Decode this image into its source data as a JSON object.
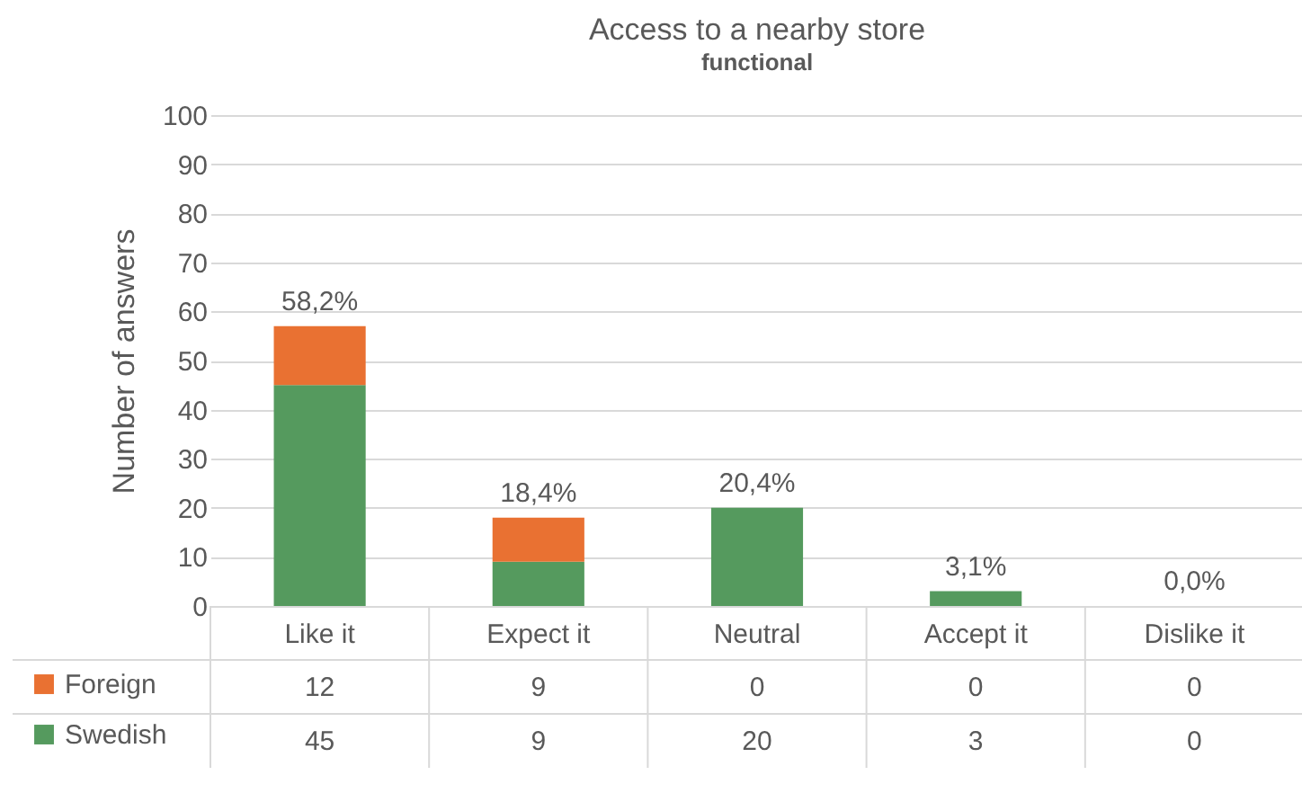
{
  "chart_data": {
    "type": "bar",
    "title": "Access to a nearby store",
    "subtitle": "functional",
    "ylabel": "Number of answers",
    "categories": [
      "Like it",
      "Expect it",
      "Neutral",
      "Accept it",
      "Dislike it"
    ],
    "series": [
      {
        "name": "Swedish",
        "color": "#559a5e",
        "values": [
          45,
          9,
          20,
          3,
          0
        ]
      },
      {
        "name": "Foreign",
        "color": "#e97132",
        "values": [
          12,
          9,
          0,
          0,
          0
        ]
      }
    ],
    "stacked": true,
    "ylim": [
      0,
      100
    ],
    "yticks": [
      0,
      10,
      20,
      30,
      40,
      50,
      60,
      70,
      80,
      90,
      100
    ],
    "grid": "y",
    "legend": "bottom left",
    "data_labels": true,
    "annotations": [
      {
        "text": "58,2%",
        "x": "Like it",
        "y": 57
      },
      {
        "text": "18,4%",
        "x": "Expect it",
        "y": 18
      },
      {
        "text": "20,4%",
        "x": "Neutral",
        "y": 20
      },
      {
        "text": "3,1%",
        "x": "Accept it",
        "y": 3
      },
      {
        "text": "0,0%",
        "x": "Dislike it",
        "y": 0
      }
    ]
  }
}
